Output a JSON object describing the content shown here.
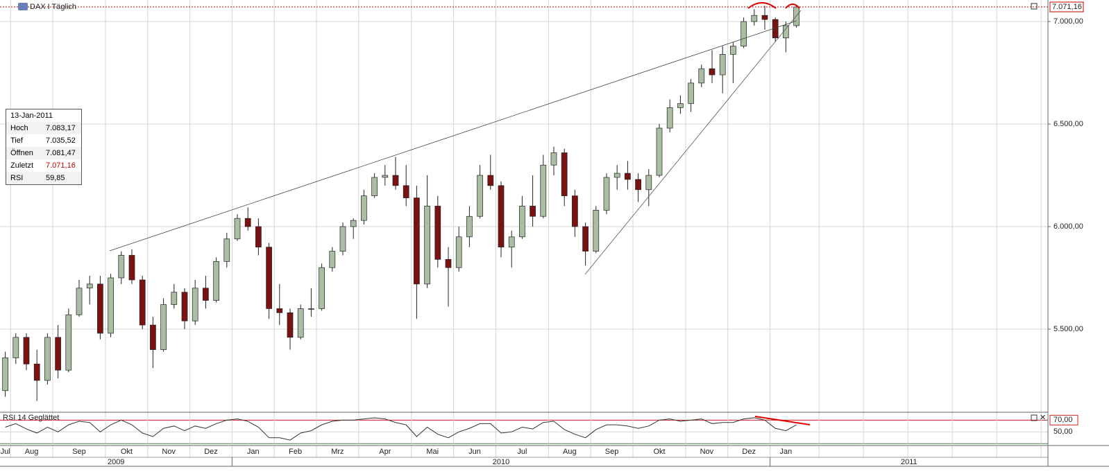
{
  "chart_data": [
    {
      "type": "candlestick",
      "title": "DAX I Täglich",
      "categories": [
        "Jul",
        "Aug",
        null,
        null,
        null,
        "Sep",
        null,
        null,
        null,
        null,
        "Okt",
        null,
        null,
        null,
        "Nov",
        null,
        null,
        null,
        "Dez",
        null,
        null,
        null,
        "Jan",
        null,
        null,
        null,
        "Feb",
        null,
        null,
        null,
        "Mrz",
        null,
        null,
        null,
        "Apr",
        null,
        null,
        null,
        null,
        "Mai",
        null,
        null,
        null,
        "Jun",
        null,
        null,
        null,
        "Jul",
        null,
        null,
        null,
        null,
        "Aug",
        null,
        null,
        null,
        "Sep",
        null,
        null,
        null,
        "Okt",
        null,
        null,
        null,
        null,
        "Nov",
        null,
        null,
        null,
        "Dez",
        null,
        null,
        null,
        "Jan",
        null,
        null
      ],
      "years": [
        "2009",
        "2010",
        "2011"
      ],
      "open": [
        5200,
        5360,
        5460,
        5330,
        5250,
        5460,
        5300,
        5570,
        5700,
        5720,
        5480,
        5750,
        5860,
        5740,
        5520,
        5400,
        5620,
        5680,
        5540,
        5700,
        5640,
        5830,
        5940,
        6040,
        6000,
        5900,
        5600,
        5580,
        5460,
        5600,
        5600,
        5800,
        5880,
        6000,
        6030,
        6150,
        6240,
        6250,
        6200,
        6140,
        5720,
        6100,
        5840,
        5800,
        5950,
        6050,
        6250,
        6200,
        5900,
        5950,
        6100,
        6050,
        6300,
        6360,
        6150,
        6000,
        5880,
        6080,
        6240,
        6260,
        6230,
        6180,
        6250,
        6480,
        6580,
        6600,
        6700,
        6770,
        6740,
        6840,
        6880,
        7000,
        7030,
        7010,
        6920,
        6980
      ],
      "high": [
        5390,
        5480,
        5480,
        5400,
        5480,
        5520,
        5600,
        5740,
        5760,
        5760,
        5770,
        5880,
        5890,
        5760,
        5560,
        5650,
        5720,
        5700,
        5740,
        5760,
        5850,
        5970,
        6060,
        6094,
        6040,
        5920,
        5720,
        5600,
        5620,
        5700,
        5820,
        5900,
        6020,
        6040,
        6180,
        6260,
        6300,
        6340,
        6300,
        6200,
        6250,
        6150,
        5900,
        6000,
        6100,
        6300,
        6350,
        6220,
        5980,
        6150,
        6250,
        6350,
        6390,
        6380,
        6180,
        6020,
        6100,
        6260,
        6300,
        6320,
        6260,
        6280,
        6500,
        6620,
        6640,
        6720,
        6790,
        6860,
        6880,
        6900,
        7020,
        7060,
        7077,
        7020,
        7000,
        7083.17
      ],
      "low": [
        5170,
        5330,
        5300,
        5150,
        5230,
        5260,
        5290,
        5560,
        5620,
        5450,
        5460,
        5720,
        5720,
        5500,
        5310,
        5390,
        5600,
        5500,
        5520,
        5600,
        5630,
        5800,
        5930,
        5980,
        5860,
        5550,
        5520,
        5400,
        5450,
        5560,
        5590,
        5780,
        5860,
        5940,
        6010,
        6140,
        6200,
        6180,
        6100,
        5550,
        5700,
        5800,
        5610,
        5780,
        5900,
        6040,
        6180,
        5850,
        5800,
        5940,
        6000,
        6040,
        6250,
        6100,
        5950,
        5810,
        5870,
        6060,
        6180,
        6180,
        6120,
        6100,
        6240,
        6460,
        6550,
        6560,
        6680,
        6700,
        6650,
        6700,
        6870,
        6980,
        6960,
        6900,
        6850,
        6970
      ],
      "close": [
        5360,
        5460,
        5330,
        5250,
        5460,
        5300,
        5570,
        5700,
        5720,
        5480,
        5750,
        5860,
        5740,
        5520,
        5400,
        5620,
        5680,
        5540,
        5700,
        5640,
        5830,
        5940,
        6040,
        6000,
        5900,
        5600,
        5580,
        5460,
        5600,
        5600,
        5800,
        5880,
        6000,
        6030,
        6150,
        6240,
        6250,
        6200,
        6140,
        5720,
        6100,
        5840,
        5800,
        5950,
        6050,
        6250,
        6200,
        5900,
        5950,
        6100,
        6050,
        6300,
        6360,
        6150,
        6000,
        5880,
        6080,
        6240,
        6260,
        6230,
        6180,
        6250,
        6480,
        6580,
        6600,
        6700,
        6770,
        6740,
        6840,
        6880,
        7000,
        7030,
        7010,
        6920,
        6980,
        7071.16
      ],
      "up_color": "#a9bea3",
      "down_color": "#7a1212",
      "ylim": [
        5098,
        7105
      ],
      "yticks": [
        {
          "value": 5500,
          "label": "5.500,00"
        },
        {
          "value": 6000,
          "label": "6.000,00"
        },
        {
          "value": 6500,
          "label": "6.500,00"
        },
        {
          "value": 7000,
          "label": "7.000,00"
        }
      ],
      "last_price": {
        "value": 7071.16,
        "label": "7.071,16"
      },
      "grid": true
    },
    {
      "type": "line",
      "title": "RSI 14 Geglättet",
      "color": "#333333",
      "values": [
        58,
        64,
        55,
        48,
        58,
        50,
        62,
        68,
        66,
        50,
        62,
        70,
        62,
        48,
        42,
        56,
        60,
        52,
        60,
        56,
        64,
        70,
        72,
        68,
        58,
        40,
        40,
        36,
        48,
        52,
        62,
        68,
        70,
        70,
        72,
        74,
        72,
        66,
        62,
        42,
        58,
        46,
        40,
        50,
        56,
        64,
        64,
        48,
        50,
        58,
        55,
        66,
        68,
        54,
        46,
        40,
        54,
        62,
        62,
        60,
        56,
        60,
        70,
        72,
        68,
        70,
        72,
        64,
        66,
        66,
        72,
        74,
        70,
        56,
        52,
        62
      ],
      "ylim": [
        28,
        81
      ],
      "yticks": [
        {
          "value": 50,
          "label": "50,00"
        },
        {
          "value": 70,
          "label": "70,00"
        }
      ],
      "bands": [
        {
          "value": 70,
          "color": "#cc2222"
        },
        {
          "value": 30,
          "color": "#3a8a3a"
        }
      ]
    }
  ],
  "info": {
    "date": "13-Jan-2011",
    "rows": [
      [
        "Hoch",
        "7.083,17"
      ],
      [
        "Tief",
        "7.035,52"
      ],
      [
        "Öffnen",
        "7.081,47"
      ],
      [
        "Zuletzt",
        "7.071,16"
      ],
      [
        "RSI",
        "59,85"
      ]
    ]
  }
}
